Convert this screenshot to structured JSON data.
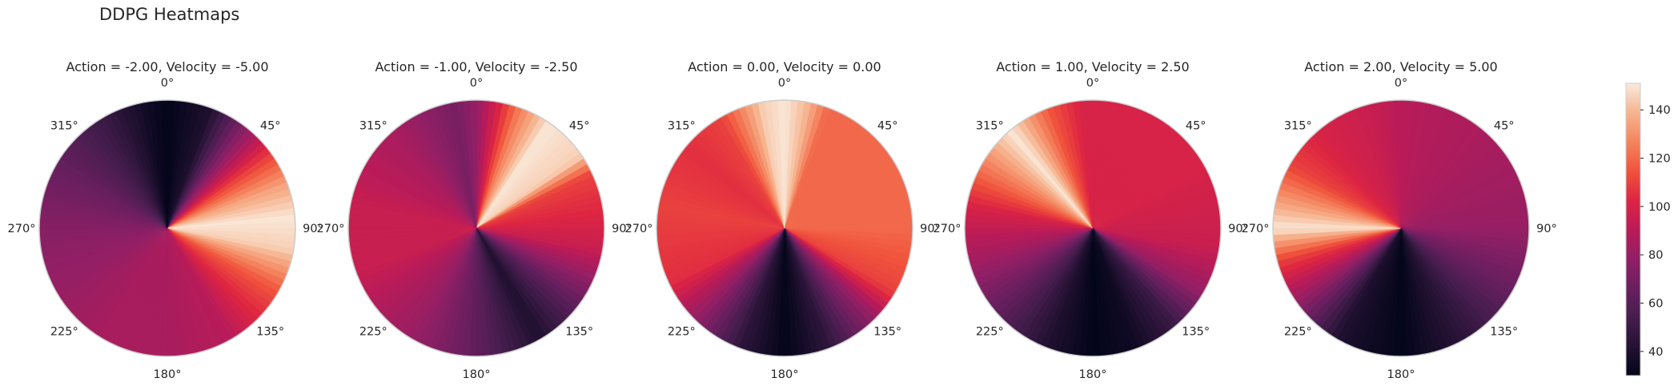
{
  "title": "DDPG Heatmaps",
  "chart_data": {
    "type": "heatmap",
    "projection": "polar",
    "theta_direction": "clockwise",
    "theta_zero": "top",
    "colormap": "rocket",
    "grid": false,
    "theta_tick_labels": [
      "0°",
      "45°",
      "90°",
      "135°",
      "180°",
      "225°",
      "270°",
      "315°"
    ],
    "colorbar": {
      "vmin": 30,
      "vmax": 151,
      "ticks": [
        40,
        60,
        80,
        100,
        120,
        140
      ]
    },
    "panels": [
      {
        "title": "Action = -2.00, Velocity = -5.00",
        "action": -2.0,
        "velocity": -5.0,
        "profile": [
          [
            0,
            30
          ],
          [
            20,
            40
          ],
          [
            40,
            80
          ],
          [
            55,
            110
          ],
          [
            70,
            135
          ],
          [
            85,
            150
          ],
          [
            100,
            145
          ],
          [
            120,
            115
          ],
          [
            150,
            90
          ],
          [
            180,
            85
          ],
          [
            210,
            85
          ],
          [
            240,
            80
          ],
          [
            270,
            75
          ],
          [
            300,
            65
          ],
          [
            330,
            50
          ],
          [
            350,
            35
          ],
          [
            360,
            30
          ]
        ]
      },
      {
        "title": "Action = -1.00, Velocity = -2.50",
        "action": -1.0,
        "velocity": -2.5,
        "profile": [
          [
            0,
            80
          ],
          [
            10,
            100
          ],
          [
            20,
            125
          ],
          [
            35,
            150
          ],
          [
            55,
            145
          ],
          [
            65,
            110
          ],
          [
            100,
            95
          ],
          [
            130,
            60
          ],
          [
            150,
            40
          ],
          [
            175,
            60
          ],
          [
            210,
            80
          ],
          [
            250,
            95
          ],
          [
            280,
            95
          ],
          [
            320,
            85
          ],
          [
            350,
            70
          ],
          [
            360,
            80
          ]
        ]
      },
      {
        "title": "Action = 0.00, Velocity = 0.00",
        "action": 0.0,
        "velocity": 0.0,
        "profile": [
          [
            0,
            150
          ],
          [
            10,
            140
          ],
          [
            20,
            120
          ],
          [
            90,
            120
          ],
          [
            120,
            110
          ],
          [
            135,
            80
          ],
          [
            160,
            45
          ],
          [
            180,
            30
          ],
          [
            200,
            45
          ],
          [
            225,
            80
          ],
          [
            245,
            105
          ],
          [
            280,
            110
          ],
          [
            310,
            105
          ],
          [
            330,
            110
          ],
          [
            350,
            145
          ],
          [
            360,
            150
          ]
        ]
      },
      {
        "title": "Action = 1.00, Velocity = 2.50",
        "action": 1.0,
        "velocity": 2.5,
        "profile": [
          [
            0,
            100
          ],
          [
            20,
            100
          ],
          [
            60,
            100
          ],
          [
            100,
            95
          ],
          [
            120,
            80
          ],
          [
            140,
            50
          ],
          [
            160,
            35
          ],
          [
            180,
            30
          ],
          [
            200,
            40
          ],
          [
            225,
            60
          ],
          [
            250,
            80
          ],
          [
            280,
            100
          ],
          [
            300,
            125
          ],
          [
            320,
            150
          ],
          [
            340,
            115
          ],
          [
            355,
            100
          ],
          [
            360,
            100
          ]
        ]
      },
      {
        "title": "Action = 2.00, Velocity = 5.00",
        "action": 2.0,
        "velocity": 5.0,
        "profile": [
          [
            0,
            90
          ],
          [
            45,
            85
          ],
          [
            90,
            80
          ],
          [
            120,
            65
          ],
          [
            150,
            45
          ],
          [
            180,
            30
          ],
          [
            210,
            40
          ],
          [
            235,
            80
          ],
          [
            255,
            110
          ],
          [
            270,
            150
          ],
          [
            285,
            130
          ],
          [
            300,
            110
          ],
          [
            320,
            100
          ],
          [
            345,
            95
          ],
          [
            360,
            90
          ]
        ]
      }
    ]
  }
}
